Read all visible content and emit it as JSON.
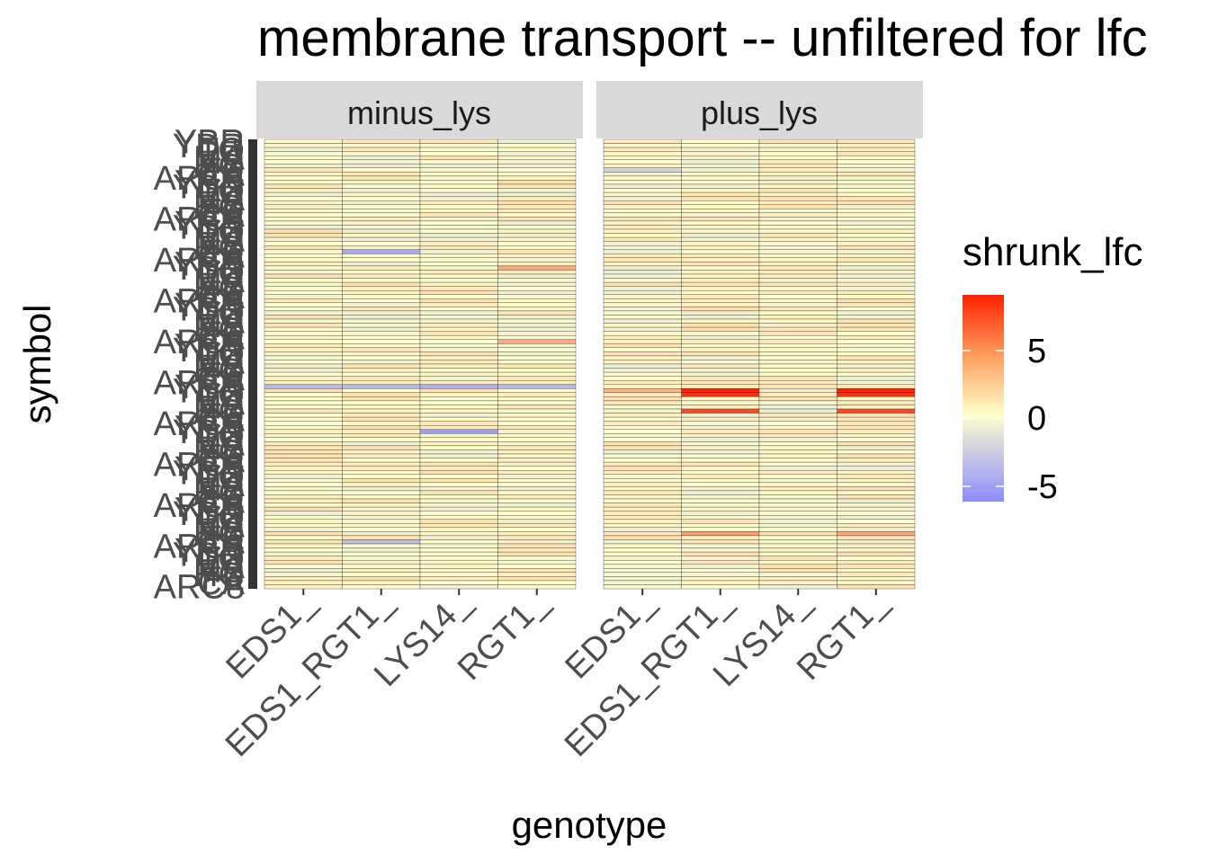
{
  "chart_data": {
    "type": "heatmap",
    "title": "membrane transport -- unfiltered for lfc",
    "xlabel": "genotype",
    "ylabel": "symbol",
    "facets": [
      "minus_lys",
      "plus_lys"
    ],
    "categories": [
      "EDS1_",
      "EDS1_RGT1_",
      "LYS14_",
      "RGT1_"
    ],
    "row_count": 110,
    "row_label_samples": [
      "YBR",
      "YDR",
      "TO",
      "PU",
      "MA",
      "MS",
      "HO",
      "FE",
      "CA",
      "ARC8"
    ],
    "fill_scale": {
      "name": "shrunk_lfc",
      "breaks": [
        5,
        0,
        -5
      ],
      "domain": [
        -6.5,
        9
      ],
      "low_color": "#8c8cff",
      "mid_color": "#ffffcc",
      "high_color": "#ff2200"
    },
    "highlights": [
      {
        "facet": "minus_lys",
        "genotype": "EDS1_RGT1_",
        "row": 27,
        "value": -5
      },
      {
        "facet": "minus_lys",
        "genotype": "EDS1_",
        "row": 60,
        "value": -4
      },
      {
        "facet": "minus_lys",
        "genotype": "EDS1_RGT1_",
        "row": 60,
        "value": -4
      },
      {
        "facet": "minus_lys",
        "genotype": "LYS14_",
        "row": 60,
        "value": -4.5
      },
      {
        "facet": "minus_lys",
        "genotype": "RGT1_",
        "row": 60,
        "value": -4
      },
      {
        "facet": "minus_lys",
        "genotype": "LYS14_",
        "row": 71,
        "value": -5.5
      },
      {
        "facet": "minus_lys",
        "genotype": "EDS1_RGT1_",
        "row": 98,
        "value": -3.5
      },
      {
        "facet": "minus_lys",
        "genotype": "RGT1_",
        "row": 31,
        "value": 3.5
      },
      {
        "facet": "minus_lys",
        "genotype": "RGT1_",
        "row": 49,
        "value": 3.5
      },
      {
        "facet": "plus_lys",
        "genotype": "EDS1_RGT1_",
        "row": 61,
        "value": 9
      },
      {
        "facet": "plus_lys",
        "genotype": "EDS1_RGT1_",
        "row": 62,
        "value": 8.5
      },
      {
        "facet": "plus_lys",
        "genotype": "RGT1_",
        "row": 61,
        "value": 9
      },
      {
        "facet": "plus_lys",
        "genotype": "RGT1_",
        "row": 62,
        "value": 8.5
      },
      {
        "facet": "plus_lys",
        "genotype": "EDS1_RGT1_",
        "row": 66,
        "value": 7.5
      },
      {
        "facet": "plus_lys",
        "genotype": "RGT1_",
        "row": 66,
        "value": 7.5
      },
      {
        "facet": "plus_lys",
        "genotype": "EDS1_",
        "row": 61,
        "value": 3
      },
      {
        "facet": "plus_lys",
        "genotype": "EDS1_",
        "row": 7,
        "value": -2.5
      },
      {
        "facet": "plus_lys",
        "genotype": "EDS1_RGT1_",
        "row": 96,
        "value": 4
      },
      {
        "facet": "plus_lys",
        "genotype": "RGT1_",
        "row": 96,
        "value": 3.5
      }
    ],
    "legend_position": "right",
    "grid": false
  }
}
